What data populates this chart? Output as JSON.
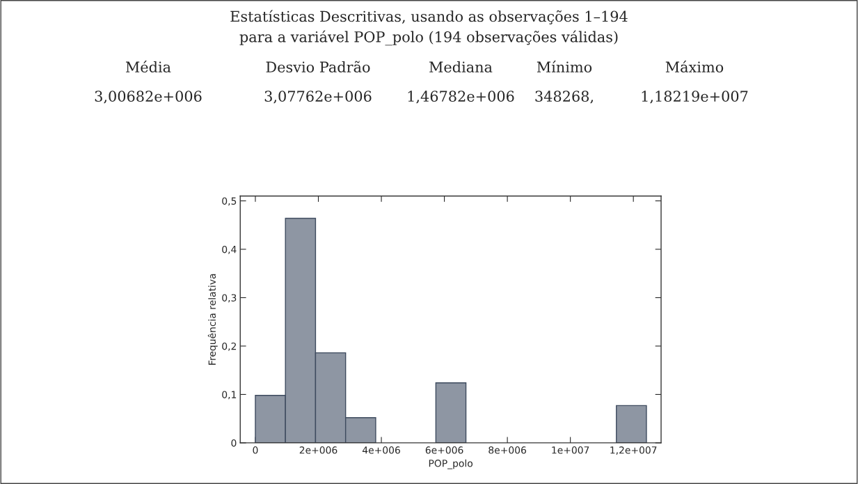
{
  "chart_data": {
    "type": "histogram",
    "title": "Estatísticas Descritivas, usando as observações 1–194\npara a variável POP_polo (194 observações válidas)",
    "annotations": [
      "Média",
      "Desvio Padrão",
      "Mediana",
      "Mínimo",
      "Máximo",
      "3,00682e+006",
      "3,07762e+006",
      "1,46782e+006",
      "348268,",
      "1,18219e+007"
    ],
    "xlabel": "POP_polo",
    "ylabel": "Frequência relativa",
    "bins": [
      0,
      955000,
      1910000,
      2865000,
      3820000,
      4775000,
      5730000,
      6685000,
      7640000,
      8595000,
      9550000,
      10505000,
      11460000,
      12415000
    ],
    "values": [
      0.098,
      0.464,
      0.186,
      0.052,
      0,
      0,
      0.124,
      0,
      0,
      0,
      0,
      0,
      0.077
    ],
    "color": "#8e96a3",
    "xlim": [
      -480000,
      12880000
    ],
    "xticks": [
      0,
      {
        "value": 2000000,
        "label": "2e+006"
      },
      {
        "value": 4000000,
        "label": "4e+006"
      },
      {
        "value": 6000000,
        "label": "6e+006"
      },
      {
        "value": 8000000,
        "label": "8e+006"
      },
      {
        "value": 10000000,
        "label": "1e+007"
      },
      {
        "value": 12000000,
        "label": "1,2e+007"
      }
    ],
    "ylim": [
      0,
      0.51
    ],
    "yticks": [
      0,
      {
        "value": 0.1,
        "label": "0,1"
      },
      {
        "value": 0.2,
        "label": "0,2"
      },
      {
        "value": 0.3,
        "label": "0,3"
      },
      {
        "value": 0.4,
        "label": "0,4"
      },
      {
        "value": 0.5,
        "label": "0,5"
      }
    ],
    "grid": false
  }
}
